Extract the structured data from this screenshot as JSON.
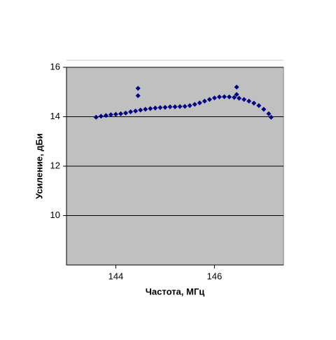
{
  "chart_data": {
    "type": "scatter",
    "x_label": "Частота, МГц",
    "y_label": "Усиление, дБи",
    "xlim": [
      143,
      147.4
    ],
    "ylim": [
      8,
      16
    ],
    "xticks": [
      144,
      146
    ],
    "yticks": [
      10,
      12,
      14,
      16
    ],
    "grid": true,
    "series": [
      {
        "color": "#000080",
        "x": [
          143.6,
          143.7,
          143.8,
          143.9,
          144.0,
          144.1,
          144.2,
          144.3,
          144.4,
          144.5,
          144.6,
          144.7,
          144.8,
          144.9,
          145.0,
          145.1,
          145.2,
          145.3,
          145.4,
          145.5,
          145.6,
          145.7,
          145.8,
          145.9,
          146.0,
          146.1,
          146.2,
          146.3,
          146.4,
          146.5,
          146.6,
          146.7,
          146.8,
          146.9,
          147.0,
          147.1,
          147.15,
          144.45,
          144.45,
          146.45,
          146.45
        ],
        "values": [
          13.98,
          14.02,
          14.05,
          14.08,
          14.1,
          14.12,
          14.15,
          14.2,
          14.23,
          14.27,
          14.3,
          14.33,
          14.35,
          14.37,
          14.38,
          14.4,
          14.4,
          14.41,
          14.42,
          14.45,
          14.5,
          14.56,
          14.63,
          14.7,
          14.76,
          14.8,
          14.81,
          14.8,
          14.78,
          14.75,
          14.7,
          14.63,
          14.55,
          14.45,
          14.3,
          14.12,
          13.98,
          15.15,
          14.85,
          15.2,
          14.9
        ]
      }
    ]
  }
}
